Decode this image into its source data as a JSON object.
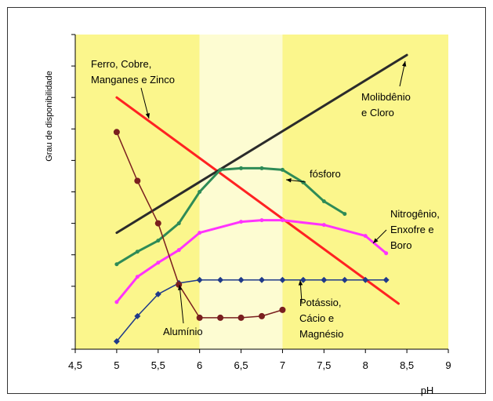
{
  "chart_data": {
    "type": "line",
    "title": "",
    "xlabel": "pH",
    "ylabel": "Grau de disponibilidade",
    "xlim": [
      4.5,
      9
    ],
    "xticks": [
      "4,5",
      "5",
      "5,5",
      "6",
      "6,5",
      "7",
      "7,5",
      "8",
      "8,5",
      "9"
    ],
    "ylim": [
      0,
      10
    ],
    "y_tick_labels_shown": false,
    "grid": false,
    "background_bands": [
      {
        "from": 4.5,
        "to": 6,
        "color": "#fbf68c"
      },
      {
        "from": 6,
        "to": 7,
        "color": "#fdfcd2"
      },
      {
        "from": 7,
        "to": 9,
        "color": "#fbf68c"
      }
    ],
    "series": [
      {
        "name": "Ferro, Cobre, Manganes e Zinco",
        "color": "#ff2222",
        "marker": "none",
        "width": 3,
        "x": [
          5,
          8.4
        ],
        "y": [
          8,
          1.45
        ]
      },
      {
        "name": "Molibdênio e Cloro",
        "color": "#2b2b2b",
        "marker": "none",
        "width": 3,
        "x": [
          5,
          8.5
        ],
        "y": [
          3.7,
          9.35
        ]
      },
      {
        "name": "fósforo",
        "color": "#2e8b57",
        "marker": "circle-small",
        "width": 3,
        "x": [
          5,
          5.25,
          5.5,
          5.75,
          6,
          6.25,
          6.5,
          6.75,
          7,
          7.25,
          7.5,
          7.75
        ],
        "y": [
          2.7,
          3.1,
          3.45,
          4.0,
          5.0,
          5.7,
          5.75,
          5.75,
          5.7,
          5.3,
          4.7,
          4.3
        ]
      },
      {
        "name": "Nitrogênio, Enxofre e Boro",
        "color": "#ff33ff",
        "marker": "circle-small",
        "width": 3,
        "x": [
          5,
          5.25,
          5.5,
          5.75,
          6,
          6.5,
          6.75,
          7,
          7.5,
          8,
          8.25
        ],
        "y": [
          1.5,
          2.3,
          2.75,
          3.15,
          3.7,
          4.05,
          4.1,
          4.1,
          3.95,
          3.6,
          3.05
        ]
      },
      {
        "name": "Potássio, Cácio e Magnésio",
        "color": "#1f3a8a",
        "marker": "diamond",
        "width": 1.5,
        "x": [
          5,
          5.25,
          5.5,
          5.75,
          6,
          6.25,
          6.5,
          6.75,
          7,
          7.25,
          7.5,
          7.75,
          8,
          8.25
        ],
        "y": [
          0.25,
          1.05,
          1.75,
          2.1,
          2.2,
          2.2,
          2.2,
          2.2,
          2.2,
          2.2,
          2.2,
          2.2,
          2.2,
          2.2
        ]
      },
      {
        "name": "Alumínio",
        "color": "#7a1f1f",
        "marker": "circle",
        "width": 1.5,
        "x": [
          5,
          5.25,
          5.5,
          5.75,
          6,
          6.25,
          6.5,
          6.75,
          7
        ],
        "y": [
          6.9,
          5.35,
          4.0,
          2.05,
          1.0,
          1.0,
          1.0,
          1.05,
          1.25
        ]
      }
    ],
    "annotations": [
      {
        "lines": [
          "Ferro, Cobre,",
          "Manganes e Zinco"
        ]
      },
      {
        "lines": [
          "Molibdênio",
          "e Cloro"
        ]
      },
      {
        "lines": [
          "fósforo"
        ]
      },
      {
        "lines": [
          "Nitrogênio,",
          "Enxofre e",
          "Boro"
        ]
      },
      {
        "lines": [
          "Potássio,",
          "Cácio e",
          "Magnésio"
        ]
      },
      {
        "lines": [
          "Alumínio"
        ]
      }
    ]
  }
}
